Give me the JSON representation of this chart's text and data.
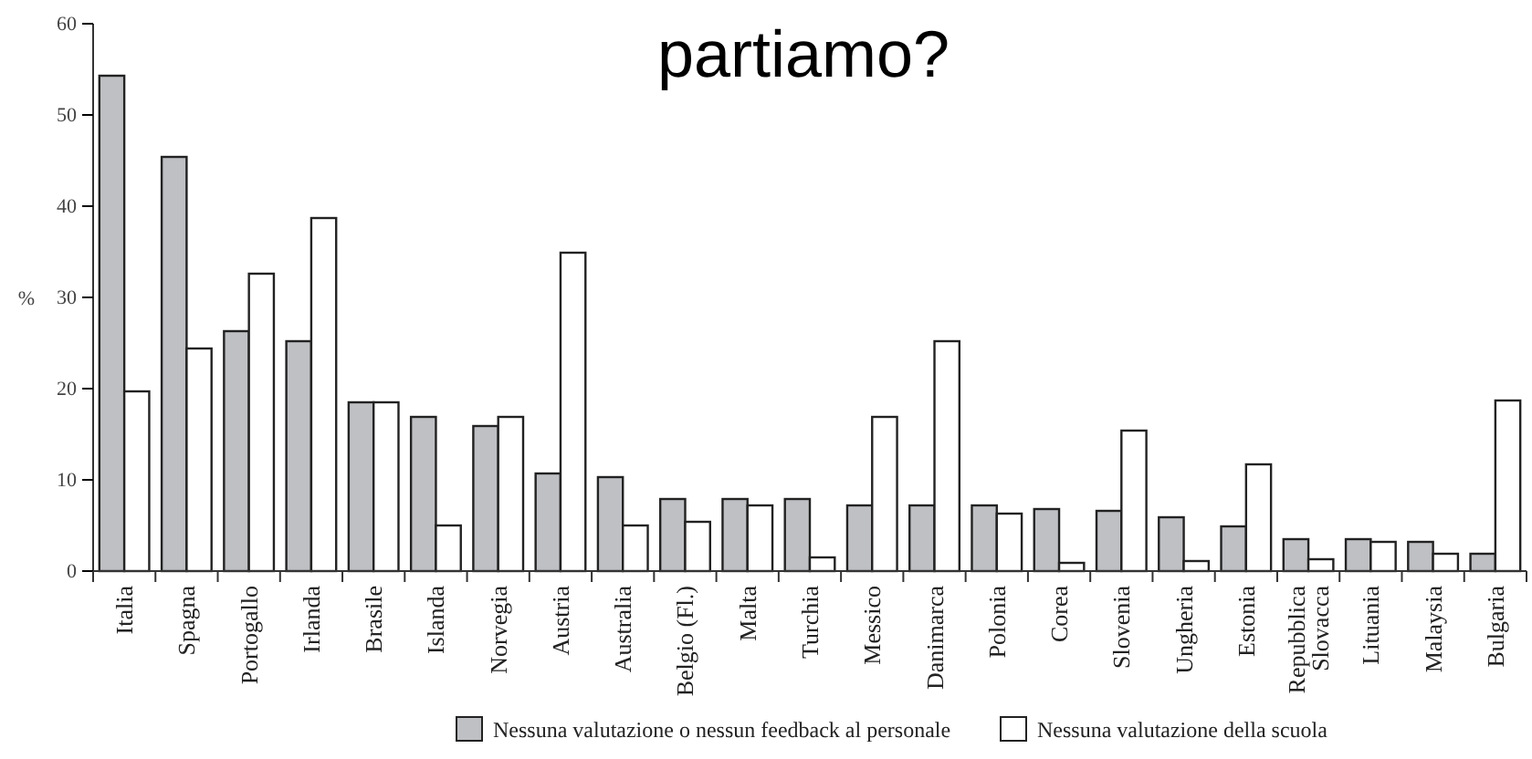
{
  "chart_data": {
    "type": "bar",
    "title": "partiamo?",
    "ylabel": "%",
    "categories": [
      "Italia",
      "Spagna",
      "Portogallo",
      "Irlanda",
      "Brasile",
      "Islanda",
      "Norvegia",
      "Austria",
      "Australia",
      "Belgio (Fl.)",
      "Malta",
      "Turchia",
      "Messico",
      "Danimarca",
      "Polonia",
      "Corea",
      "Slovenia",
      "Ungheria",
      "Estonia",
      "Repubblica Slovacca",
      "Lituania",
      "Malaysia",
      "Bulgaria"
    ],
    "series": [
      {
        "name": "Nessuna valutazione o nessun feedback al personale",
        "color": "#bfc0c4",
        "values": [
          54.3,
          45.4,
          26.3,
          25.2,
          18.5,
          16.9,
          15.9,
          10.7,
          10.3,
          7.9,
          7.9,
          7.9,
          7.2,
          7.2,
          7.2,
          6.8,
          6.6,
          5.9,
          4.9,
          3.5,
          3.5,
          3.2,
          1.9
        ]
      },
      {
        "name": "Nessuna valutazione della scuola",
        "color": "#ffffff",
        "values": [
          19.7,
          24.4,
          32.6,
          38.7,
          18.5,
          5.0,
          16.9,
          34.9,
          5.0,
          5.4,
          7.2,
          1.5,
          16.9,
          25.2,
          6.3,
          0.9,
          15.4,
          1.1,
          11.7,
          1.3,
          3.2,
          1.9,
          18.7
        ]
      }
    ],
    "ylim": [
      0,
      60
    ],
    "yticks": [
      0,
      10,
      20,
      30,
      40,
      50,
      60
    ],
    "grid": false,
    "legend": "bottom"
  }
}
